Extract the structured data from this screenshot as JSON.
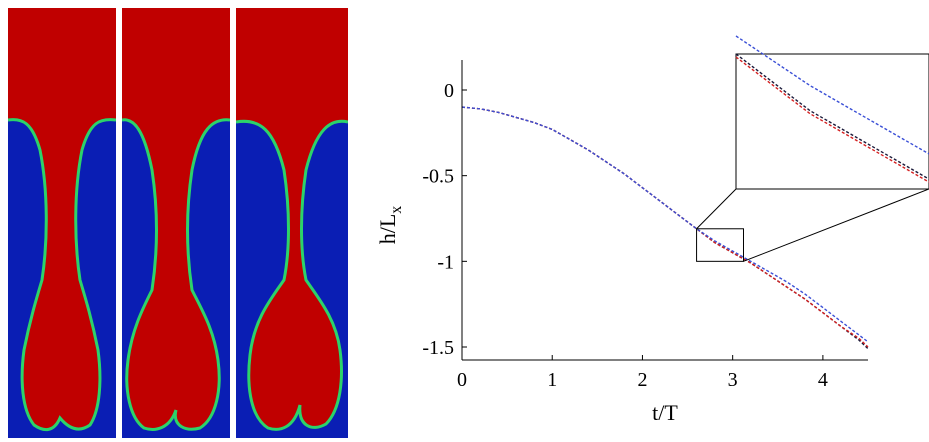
{
  "colors": {
    "heavy_fluid": "#c00000",
    "light_fluid": "#0a1eb4",
    "interface": "#2cd36a",
    "series_dark": "#1a1a3a",
    "series_red": "#d42020",
    "series_blue": "#3a4fd6"
  },
  "chart_data": {
    "type": "line",
    "xlabel": "t/T",
    "ylabel": "h/L",
    "ylabel_subscript": "x",
    "xlim": [
      0,
      4.5
    ],
    "ylim": [
      -1.58,
      0.2
    ],
    "x_ticks": [
      0,
      1,
      2,
      3,
      4
    ],
    "y_ticks": [
      0,
      -0.5,
      -1,
      -1.5
    ],
    "x_tick_labels": [
      "0",
      "1",
      "2",
      "3",
      "4"
    ],
    "y_tick_labels": [
      "0",
      "-0.5",
      "-1",
      "-1.5"
    ],
    "grid": false,
    "box": false,
    "series": [
      {
        "color_key": "series_dark",
        "x": [
          0,
          0.2,
          0.4,
          0.6,
          0.8,
          1.0,
          1.2,
          1.4,
          1.6,
          1.8,
          2.0,
          2.2,
          2.4,
          2.6,
          2.8,
          3.0,
          3.2,
          3.4,
          3.6,
          3.8,
          4.0,
          4.2,
          4.4,
          4.5
        ],
        "y": [
          -0.1,
          -0.11,
          -0.13,
          -0.16,
          -0.19,
          -0.23,
          -0.29,
          -0.35,
          -0.42,
          -0.49,
          -0.57,
          -0.65,
          -0.73,
          -0.81,
          -0.89,
          -0.95,
          -1.01,
          -1.08,
          -1.15,
          -1.22,
          -1.3,
          -1.38,
          -1.46,
          -1.51
        ]
      },
      {
        "color_key": "series_red",
        "x": [
          0,
          0.2,
          0.4,
          0.6,
          0.8,
          1.0,
          1.2,
          1.4,
          1.6,
          1.8,
          2.0,
          2.2,
          2.4,
          2.6,
          2.8,
          3.0,
          3.2,
          3.4,
          3.6,
          3.8,
          4.0,
          4.2,
          4.4,
          4.5
        ],
        "y": [
          -0.1,
          -0.11,
          -0.13,
          -0.16,
          -0.19,
          -0.23,
          -0.29,
          -0.35,
          -0.42,
          -0.49,
          -0.57,
          -0.65,
          -0.73,
          -0.81,
          -0.89,
          -0.95,
          -1.01,
          -1.08,
          -1.15,
          -1.22,
          -1.3,
          -1.38,
          -1.45,
          -1.5
        ]
      },
      {
        "color_key": "series_blue",
        "x": [
          0,
          0.2,
          0.4,
          0.6,
          0.8,
          1.0,
          1.2,
          1.4,
          1.6,
          1.8,
          2.0,
          2.2,
          2.4,
          2.6,
          2.8,
          3.0,
          3.2,
          3.4,
          3.6,
          3.8,
          4.0,
          4.2,
          4.4,
          4.5
        ],
        "y": [
          -0.1,
          -0.11,
          -0.13,
          -0.16,
          -0.19,
          -0.23,
          -0.29,
          -0.35,
          -0.42,
          -0.49,
          -0.57,
          -0.65,
          -0.73,
          -0.81,
          -0.88,
          -0.94,
          -1.0,
          -1.06,
          -1.12,
          -1.19,
          -1.27,
          -1.35,
          -1.43,
          -1.47
        ]
      }
    ],
    "zoom_box": {
      "x": [
        2.6,
        3.12
      ],
      "y": [
        -1.0,
        -0.81
      ]
    }
  }
}
